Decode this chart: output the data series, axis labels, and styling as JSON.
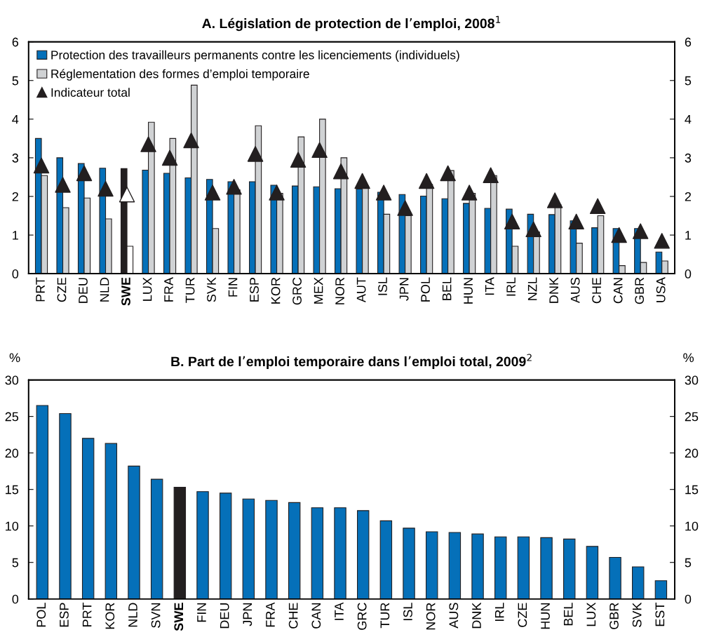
{
  "chart_data": [
    {
      "type": "bar",
      "title": "A. Législation de protection de l’emploi, 2008$^{1}$",
      "categories": [
        "PRT",
        "CZE",
        "DEU",
        "NLD",
        "SWE",
        "LUX",
        "FRA",
        "TUR",
        "SVK",
        "FIN",
        "ESP",
        "KOR",
        "GRC",
        "MEX",
        "NOR",
        "AUT",
        "ISL",
        "JPN",
        "POL",
        "BEL",
        "HUN",
        "ITA",
        "IRL",
        "NZL",
        "DNK",
        "AUS",
        "CHE",
        "CAN",
        "GBR",
        "USA"
      ],
      "series": [
        {
          "name": "Protection des travailleurs permanents contre les licenciements (individuels)",
          "color": "#0570b9",
          "colors": [
            "#0570b9",
            "#0570b9",
            "#0570b9",
            "#0570b9",
            "#231f20",
            "#0570b9",
            "#0570b9",
            "#0570b9",
            "#0570b9",
            "#0570b9",
            "#0570b9",
            "#0570b9",
            "#0570b9",
            "#0570b9",
            "#0570b9",
            "#0570b9",
            "#0570b9",
            "#0570b9",
            "#0570b9",
            "#0570b9",
            "#0570b9",
            "#0570b9",
            "#0570b9",
            "#0570b9",
            "#0570b9",
            "#0570b9",
            "#0570b9",
            "#0570b9",
            "#0570b9",
            "#0570b9"
          ],
          "values": [
            3.5,
            3.0,
            2.85,
            2.73,
            2.72,
            2.68,
            2.6,
            2.48,
            2.44,
            2.38,
            2.38,
            2.29,
            2.27,
            2.25,
            2.2,
            2.19,
            2.11,
            2.05,
            2.01,
            1.94,
            1.82,
            1.69,
            1.67,
            1.54,
            1.53,
            1.37,
            1.19,
            1.17,
            1.17,
            0.56
          ]
        },
        {
          "name": "Réglementation des formes d’emploi temporaire",
          "color": "#d0d2d4",
          "colors": [
            "#d0d2d4",
            "#d0d2d4",
            "#d0d2d4",
            "#d0d2d4",
            "#ffffff",
            "#d0d2d4",
            "#d0d2d4",
            "#d0d2d4",
            "#d0d2d4",
            "#d0d2d4",
            "#d0d2d4",
            "#d0d2d4",
            "#d0d2d4",
            "#d0d2d4",
            "#d0d2d4",
            "#d0d2d4",
            "#d0d2d4",
            "#d0d2d4",
            "#d0d2d4",
            "#d0d2d4",
            "#d0d2d4",
            "#d0d2d4",
            "#d0d2d4",
            "#d0d2d4",
            "#d0d2d4",
            "#d0d2d4",
            "#d0d2d4",
            "#d0d2d4",
            "#d0d2d4",
            "#d0d2d4"
          ],
          "values": [
            2.54,
            1.71,
            1.96,
            1.42,
            0.71,
            3.92,
            3.5,
            4.88,
            1.17,
            2.17,
            3.83,
            2.08,
            3.54,
            4.0,
            3.0,
            2.28,
            1.54,
            1.5,
            2.31,
            2.67,
            2.08,
            2.54,
            0.71,
            1.08,
            1.79,
            0.79,
            1.5,
            0.21,
            0.29,
            0.33
          ]
        },
        {
          "name": "Indicateur total",
          "type": "scatter",
          "marker": "triangle",
          "color": "#231f20",
          "colors": [
            "#231f20",
            "#231f20",
            "#231f20",
            "#231f20",
            "#ffffff",
            "#231f20",
            "#231f20",
            "#231f20",
            "#231f20",
            "#231f20",
            "#231f20",
            "#231f20",
            "#231f20",
            "#231f20",
            "#231f20",
            "#231f20",
            "#231f20",
            "#231f20",
            "#231f20",
            "#231f20",
            "#231f20",
            "#231f20",
            "#231f20",
            "#231f20",
            "#231f20",
            "#231f20",
            "#231f20",
            "#231f20",
            "#231f20",
            "#231f20"
          ],
          "values": [
            2.8,
            2.3,
            2.6,
            2.2,
            2.05,
            3.35,
            3.0,
            3.45,
            2.1,
            2.25,
            3.1,
            2.1,
            2.95,
            3.2,
            2.65,
            2.4,
            2.1,
            1.7,
            2.4,
            2.6,
            2.1,
            2.55,
            1.35,
            1.15,
            1.9,
            1.35,
            1.75,
            1.0,
            1.1,
            0.85
          ]
        }
      ],
      "ylim": [
        0,
        6
      ],
      "yticks": [
        0,
        1,
        2,
        3,
        4,
        5,
        6
      ],
      "y2lim": [
        0,
        6
      ],
      "y2ticks": [
        0,
        1,
        2,
        3,
        4,
        5,
        6
      ],
      "legend": "top left",
      "grid": false
    },
    {
      "type": "bar",
      "title": "B. Part de l’emploi temporaire dans l’emploi total, 2009$^{2}$",
      "ylabel": "%",
      "y2label": "%",
      "categories": [
        "POL",
        "ESP",
        "PRT",
        "KOR",
        "NLD",
        "SVN",
        "SWE",
        "FIN",
        "DEU",
        "JPN",
        "FRA",
        "CHE",
        "CAN",
        "ITA",
        "GRC",
        "TUR",
        "ISL",
        "NOR",
        "AUS",
        "DNK",
        "IRL",
        "CZE",
        "HUN",
        "BEL",
        "LUX",
        "GBR",
        "SVK",
        "EST"
      ],
      "series": [
        {
          "color": "#0570b9",
          "colors": [
            "#0570b9",
            "#0570b9",
            "#0570b9",
            "#0570b9",
            "#0570b9",
            "#0570b9",
            "#231f20",
            "#0570b9",
            "#0570b9",
            "#0570b9",
            "#0570b9",
            "#0570b9",
            "#0570b9",
            "#0570b9",
            "#0570b9",
            "#0570b9",
            "#0570b9",
            "#0570b9",
            "#0570b9",
            "#0570b9",
            "#0570b9",
            "#0570b9",
            "#0570b9",
            "#0570b9",
            "#0570b9",
            "#0570b9",
            "#0570b9",
            "#0570b9"
          ],
          "values": [
            26.5,
            25.4,
            22.0,
            21.3,
            18.2,
            16.4,
            15.3,
            14.7,
            14.5,
            13.7,
            13.5,
            13.2,
            12.5,
            12.5,
            12.1,
            10.7,
            9.7,
            9.2,
            9.1,
            8.9,
            8.5,
            8.5,
            8.4,
            8.2,
            7.2,
            5.7,
            4.4,
            2.5
          ]
        }
      ],
      "ylim": [
        0,
        30
      ],
      "yticks": [
        0,
        5,
        10,
        15,
        20,
        25,
        30
      ],
      "y2lim": [
        0,
        30
      ],
      "y2ticks": [
        0,
        5,
        10,
        15,
        20,
        25,
        30
      ],
      "grid": false
    }
  ]
}
